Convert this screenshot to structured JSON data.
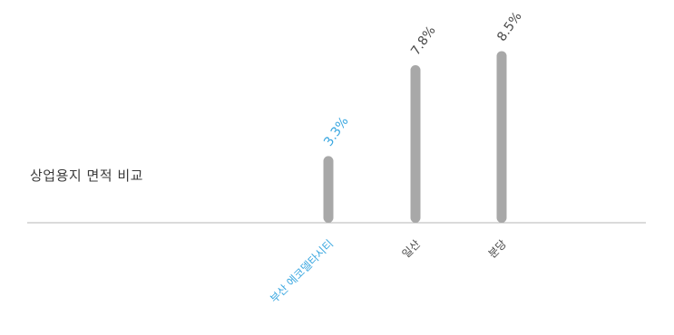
{
  "chart_data": {
    "type": "bar",
    "title": "상업용지 면적 비교",
    "categories": [
      "부산 에코델타시티",
      "일산",
      "분당"
    ],
    "values": [
      3.3,
      7.8,
      8.5
    ],
    "value_labels": [
      "3.3%",
      "7.8%",
      "8.5%"
    ],
    "unit": "%",
    "grid": false,
    "colors": {
      "bar": "#a8a8a8",
      "highlight_label": "#3aa7e0",
      "label": "#4a4a4a",
      "axis": "#b5b5b5"
    },
    "highlight_index": 0
  }
}
